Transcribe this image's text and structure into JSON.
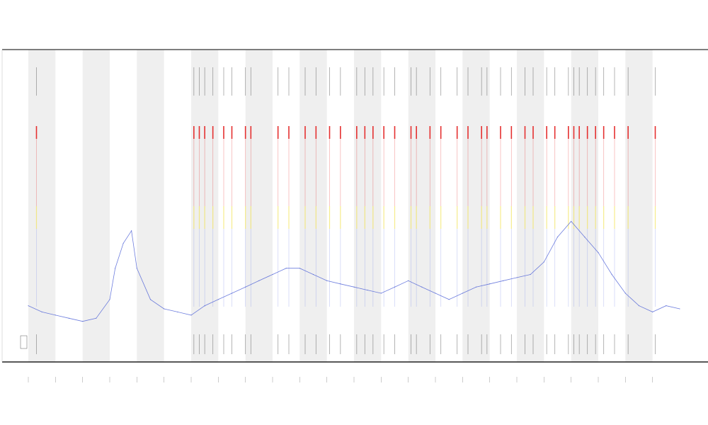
{
  "chart_data": {
    "type": "line",
    "title": "",
    "xlabel": "",
    "ylabel": "",
    "legend": {
      "placement": "bottom-left",
      "entries": []
    },
    "grid": false,
    "band_color": "#efefef",
    "signal_color": "#4a5ed6",
    "marker_colors": {
      "high": "#e53030",
      "mid": "#f0e040",
      "low": "#9aa4ec",
      "tick": "#555555"
    },
    "x_range": [
      0,
      24
    ],
    "y_range": [
      0,
      100
    ],
    "alternating_bands": [
      [
        0,
        1
      ],
      [
        2,
        3
      ],
      [
        4,
        5
      ],
      [
        6,
        7
      ],
      [
        8,
        9
      ],
      [
        10,
        11
      ],
      [
        12,
        13
      ],
      [
        14,
        15
      ],
      [
        16,
        17
      ],
      [
        18,
        19
      ],
      [
        20,
        21
      ],
      [
        22,
        23
      ]
    ],
    "event_times": [
      0.3,
      6.1,
      6.3,
      6.5,
      6.8,
      7.2,
      7.5,
      8.0,
      8.2,
      9.2,
      9.6,
      10.2,
      10.6,
      11.1,
      11.5,
      12.1,
      12.4,
      12.7,
      13.1,
      13.5,
      14.1,
      14.3,
      14.8,
      15.2,
      15.8,
      16.2,
      16.7,
      16.9,
      17.4,
      17.8,
      18.3,
      18.6,
      19.1,
      19.4,
      19.9,
      20.1,
      20.3,
      20.6,
      20.9,
      21.2,
      21.6,
      22.1,
      23.1
    ],
    "series": [
      {
        "x": [
          0,
          0.5,
          1,
          1.5,
          2,
          2.5,
          3,
          3.2,
          3.5,
          3.8,
          4,
          4.5,
          5,
          5.5,
          6,
          6.5,
          7,
          7.5,
          8,
          8.5,
          9,
          9.5,
          10,
          10.5,
          11,
          11.5,
          12,
          12.5,
          13,
          13.5,
          14,
          14.5,
          15,
          15.5,
          16,
          16.5,
          17,
          17.5,
          18,
          18.5,
          19,
          19.5,
          20,
          20.5,
          21,
          21.5,
          22,
          22.5,
          23,
          23.5,
          24
        ],
        "values": [
          18,
          16,
          15,
          14,
          13,
          14,
          20,
          30,
          38,
          42,
          30,
          20,
          17,
          16,
          15,
          18,
          20,
          22,
          24,
          26,
          28,
          30,
          30,
          28,
          26,
          25,
          24,
          23,
          22,
          24,
          26,
          24,
          22,
          20,
          22,
          24,
          25,
          26,
          27,
          28,
          32,
          40,
          45,
          40,
          35,
          28,
          22,
          18,
          16,
          18,
          17
        ]
      }
    ]
  }
}
